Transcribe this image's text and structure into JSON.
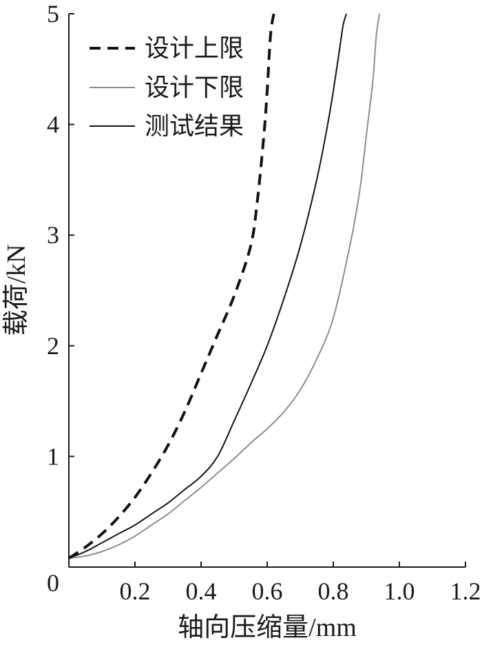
{
  "chart_data": {
    "type": "line",
    "xlabel": "轴向压缩量/mm",
    "ylabel": "载荷/kN",
    "xlim": [
      0,
      1.2
    ],
    "ylim": [
      0,
      5
    ],
    "xticks": [
      0.2,
      0.4,
      0.6,
      0.8,
      1.0,
      1.2
    ],
    "xtick_labels": [
      "0.2",
      "0.4",
      "0.6",
      "0.8",
      "1.0",
      "1.2"
    ],
    "yticks": [
      1,
      2,
      3,
      4,
      5
    ],
    "ytick_labels": [
      "1",
      "2",
      "3",
      "4",
      "5"
    ],
    "origin_label": "0",
    "grid": false,
    "legend_position": "top-left",
    "series": [
      {
        "name": "设计上限",
        "color": "#111111",
        "style": "dashed",
        "x": [
          0.0,
          0.05,
          0.1,
          0.15,
          0.2,
          0.25,
          0.3,
          0.35,
          0.4,
          0.45,
          0.5,
          0.55,
          0.57,
          0.59,
          0.6,
          0.61,
          0.62
        ],
        "y": [
          0.08,
          0.18,
          0.3,
          0.45,
          0.63,
          0.85,
          1.1,
          1.4,
          1.75,
          2.1,
          2.45,
          2.9,
          3.3,
          3.9,
          4.3,
          4.8,
          5.0
        ]
      },
      {
        "name": "设计下限",
        "color": "#8c8c8c",
        "style": "solid",
        "x": [
          0.0,
          0.05,
          0.1,
          0.15,
          0.2,
          0.25,
          0.3,
          0.35,
          0.4,
          0.45,
          0.5,
          0.55,
          0.6,
          0.65,
          0.7,
          0.75,
          0.8,
          0.85,
          0.88,
          0.9,
          0.92,
          0.93,
          0.94
        ],
        "y": [
          0.08,
          0.1,
          0.14,
          0.2,
          0.28,
          0.38,
          0.48,
          0.6,
          0.72,
          0.85,
          0.98,
          1.12,
          1.25,
          1.4,
          1.6,
          1.88,
          2.25,
          2.9,
          3.4,
          3.9,
          4.4,
          4.8,
          5.0
        ]
      },
      {
        "name": "测试结果",
        "color": "#111111",
        "style": "solid",
        "x": [
          0.0,
          0.05,
          0.1,
          0.15,
          0.2,
          0.25,
          0.3,
          0.35,
          0.4,
          0.45,
          0.5,
          0.55,
          0.6,
          0.65,
          0.7,
          0.75,
          0.78,
          0.8,
          0.82,
          0.83,
          0.84
        ],
        "y": [
          0.08,
          0.14,
          0.22,
          0.3,
          0.38,
          0.48,
          0.58,
          0.7,
          0.82,
          1.0,
          1.32,
          1.65,
          2.0,
          2.42,
          2.9,
          3.5,
          3.95,
          4.3,
          4.7,
          4.9,
          5.0
        ]
      }
    ]
  }
}
